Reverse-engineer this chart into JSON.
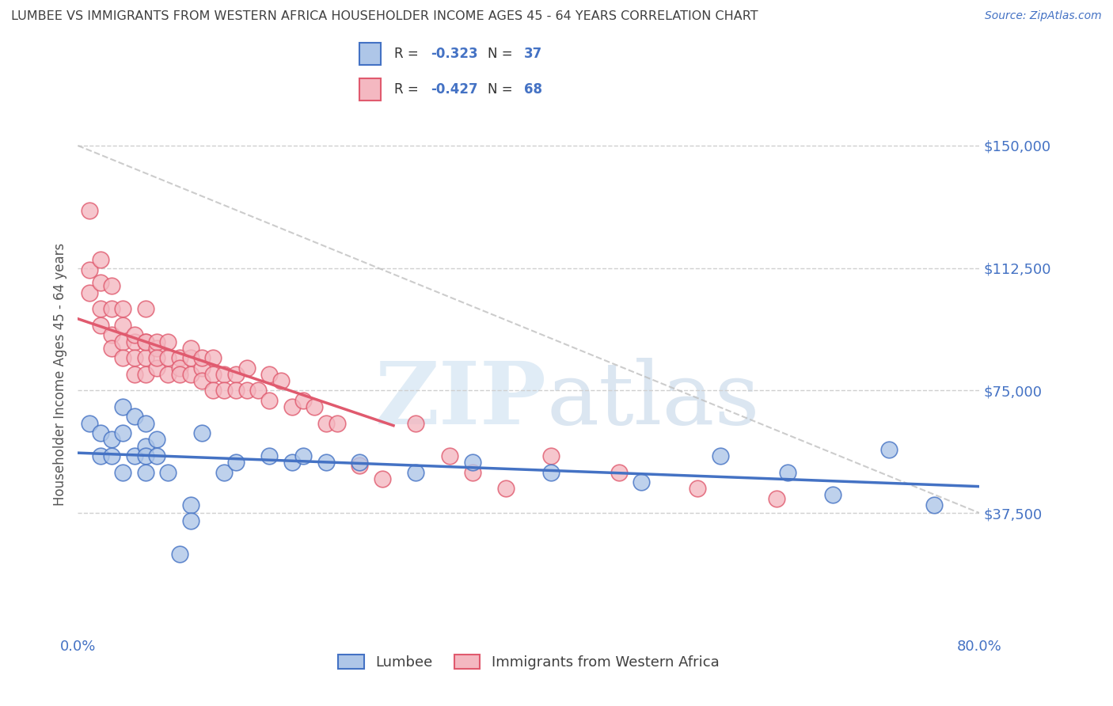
{
  "title": "LUMBEE VS IMMIGRANTS FROM WESTERN AFRICA HOUSEHOLDER INCOME AGES 45 - 64 YEARS CORRELATION CHART",
  "source": "Source: ZipAtlas.com",
  "ylabel": "Householder Income Ages 45 - 64 years",
  "xlim": [
    0.0,
    0.8
  ],
  "ylim": [
    0,
    160000
  ],
  "yticks": [
    37500,
    75000,
    112500,
    150000
  ],
  "ytick_labels": [
    "$37,500",
    "$75,000",
    "$112,500",
    "$150,000"
  ],
  "xticks": [
    0.0,
    0.8
  ],
  "xtick_labels": [
    "0.0%",
    "80.0%"
  ],
  "legend_labels": [
    "Lumbee",
    "Immigrants from Western Africa"
  ],
  "lumbee_color": "#aec6e8",
  "lumbee_line_color": "#4472c4",
  "western_africa_color": "#f4b8c1",
  "western_africa_line_color": "#e05a6e",
  "lumbee_R": -0.323,
  "lumbee_N": 37,
  "western_africa_R": -0.427,
  "western_africa_N": 68,
  "background_color": "#ffffff",
  "grid_color": "#d0d0d0",
  "title_color": "#404040",
  "axis_label_color": "#4472c4",
  "lumbee_x": [
    0.01,
    0.02,
    0.02,
    0.03,
    0.03,
    0.04,
    0.04,
    0.04,
    0.05,
    0.05,
    0.06,
    0.06,
    0.06,
    0.06,
    0.07,
    0.07,
    0.08,
    0.09,
    0.1,
    0.1,
    0.11,
    0.13,
    0.14,
    0.17,
    0.19,
    0.2,
    0.22,
    0.25,
    0.3,
    0.35,
    0.42,
    0.5,
    0.57,
    0.63,
    0.67,
    0.72,
    0.76
  ],
  "lumbee_y": [
    65000,
    62000,
    55000,
    60000,
    55000,
    70000,
    62000,
    50000,
    67000,
    55000,
    65000,
    58000,
    55000,
    50000,
    60000,
    55000,
    50000,
    25000,
    40000,
    35000,
    62000,
    50000,
    53000,
    55000,
    53000,
    55000,
    53000,
    53000,
    50000,
    53000,
    50000,
    47000,
    55000,
    50000,
    43000,
    57000,
    40000
  ],
  "western_africa_x": [
    0.01,
    0.01,
    0.01,
    0.02,
    0.02,
    0.02,
    0.02,
    0.03,
    0.03,
    0.03,
    0.03,
    0.04,
    0.04,
    0.04,
    0.04,
    0.05,
    0.05,
    0.05,
    0.05,
    0.06,
    0.06,
    0.06,
    0.06,
    0.06,
    0.07,
    0.07,
    0.07,
    0.07,
    0.08,
    0.08,
    0.08,
    0.09,
    0.09,
    0.09,
    0.1,
    0.1,
    0.1,
    0.11,
    0.11,
    0.11,
    0.12,
    0.12,
    0.12,
    0.13,
    0.13,
    0.14,
    0.14,
    0.15,
    0.15,
    0.16,
    0.17,
    0.17,
    0.18,
    0.19,
    0.2,
    0.21,
    0.22,
    0.23,
    0.25,
    0.27,
    0.3,
    0.33,
    0.35,
    0.38,
    0.42,
    0.48,
    0.55,
    0.62
  ],
  "western_africa_y": [
    130000,
    112000,
    105000,
    108000,
    100000,
    95000,
    115000,
    100000,
    92000,
    88000,
    107000,
    95000,
    90000,
    85000,
    100000,
    90000,
    85000,
    92000,
    80000,
    90000,
    85000,
    80000,
    90000,
    100000,
    88000,
    82000,
    90000,
    85000,
    85000,
    80000,
    90000,
    85000,
    82000,
    80000,
    85000,
    80000,
    88000,
    82000,
    78000,
    85000,
    80000,
    75000,
    85000,
    80000,
    75000,
    80000,
    75000,
    75000,
    82000,
    75000,
    80000,
    72000,
    78000,
    70000,
    72000,
    70000,
    65000,
    65000,
    52000,
    48000,
    65000,
    55000,
    50000,
    45000,
    55000,
    50000,
    45000,
    42000
  ],
  "lumbee_trend_x": [
    0.0,
    0.8
  ],
  "lumbee_trend_y": [
    65000,
    37500
  ],
  "wa_trend_x": [
    0.0,
    0.28
  ],
  "wa_trend_y": [
    100000,
    65000
  ],
  "ref_line_x": [
    0.0,
    0.8
  ],
  "ref_line_y": [
    150000,
    37500
  ]
}
